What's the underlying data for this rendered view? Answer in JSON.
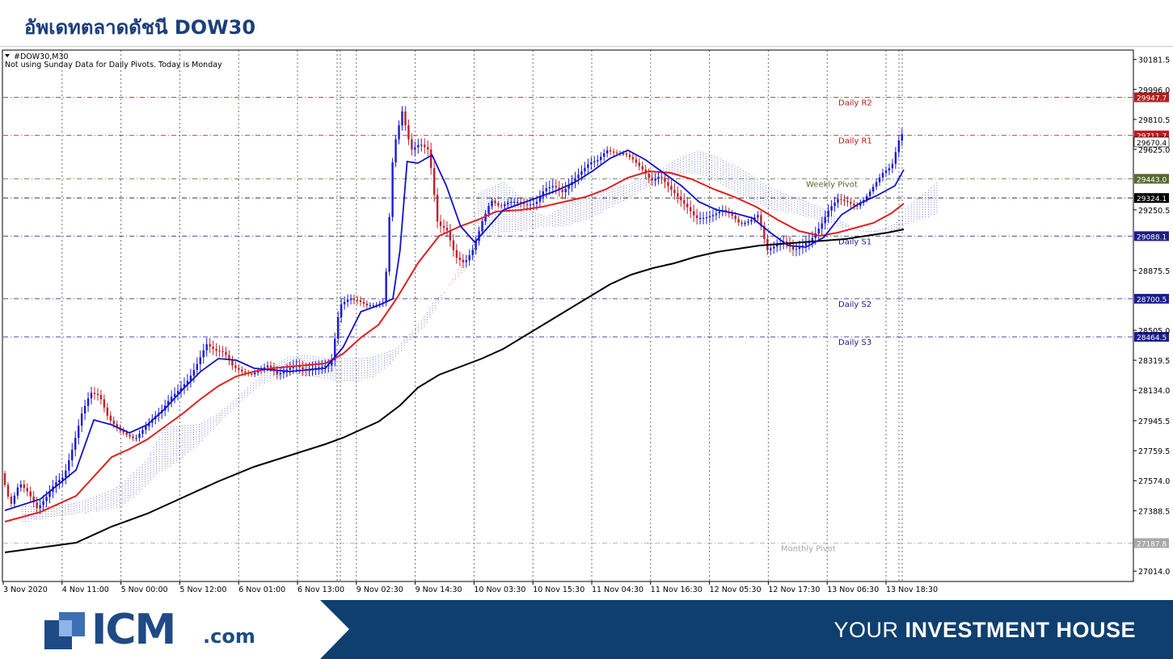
{
  "slide": {
    "title": "อัพเดทตลาดดัชนี DOW30",
    "footer": {
      "logo_text": "ICM",
      "logo_suffix": ".com",
      "tagline_light": "YOUR ",
      "tagline_bold": "INVESTMENT HOUSE"
    }
  },
  "colors": {
    "title": "#1c3f7a",
    "footer_band": "#0f3f6e",
    "candle_up": "#1a1ad6",
    "candle_down": "#c0202a",
    "ma_fast": "#1111cc",
    "ma_mid": "#e02020",
    "ma_slow": "#000000",
    "cloud_up": "#3a3ad0",
    "cloud_down": "#e03030"
  },
  "chart_data": {
    "type": "line",
    "symbol_label": "#DOW30,M30",
    "note": "Not using Sunday Data for Daily Pivots.  Today is Monday",
    "y_ticks": [
      30181.5,
      29996.0,
      29810.5,
      29625.0,
      29250.5,
      28875.5,
      28505.0,
      28319.5,
      28134.0,
      27945.5,
      27759.5,
      27574.0,
      27388.5,
      27014.0
    ],
    "ylim": [
      26950,
      30240
    ],
    "x_ticks": [
      "3 Nov 2020",
      "4 Nov 11:00",
      "5 Nov 00:00",
      "5 Nov 12:00",
      "6 Nov 01:00",
      "6 Nov 13:00",
      "9 Nov 02:30",
      "9 Nov 14:30",
      "10 Nov 03:30",
      "10 Nov 15:30",
      "11 Nov 04:30",
      "11 Nov 16:30",
      "12 Nov 05:30",
      "12 Nov 17:30",
      "13 Nov 06:30",
      "13 Nov 18:30"
    ],
    "levels": [
      {
        "label": "Daily R2",
        "value": 29947.7,
        "value_text": "29947.7",
        "color": "#b02020"
      },
      {
        "label": "Daily R1",
        "value": 29711.7,
        "value_text": "29711.7",
        "color": "#c01818"
      },
      {
        "label": "Weekly Pivot",
        "value": 29443.0,
        "value_text": "29443.0",
        "color": "#556b2f"
      },
      {
        "label": "",
        "value": 29324.1,
        "value_text": "29324.1",
        "color": "#000000"
      },
      {
        "label": "Daily S1",
        "value": 29088.1,
        "value_text": "29088.1",
        "color": "#1c1c8a"
      },
      {
        "label": "Daily S2",
        "value": 28700.5,
        "value_text": "28700.5",
        "color": "#1c1c8a"
      },
      {
        "label": "Daily S3",
        "value": 28464.5,
        "value_text": "28464.5",
        "color": "#1c1c8a"
      },
      {
        "label": "Monthly Pivot",
        "value": 27187.8,
        "value_text": "27187.8",
        "color": "#a8a8a8"
      }
    ],
    "current_price": {
      "value": 29670.4,
      "value_text": "29670.4"
    },
    "series": [
      {
        "role": "price",
        "points": [
          [
            0,
            27620
          ],
          [
            5,
            27420
          ],
          [
            10,
            27560
          ],
          [
            15,
            27500
          ],
          [
            20,
            27400
          ],
          [
            25,
            27470
          ],
          [
            30,
            27560
          ],
          [
            35,
            27600
          ],
          [
            40,
            27780
          ],
          [
            45,
            27990
          ],
          [
            50,
            28120
          ],
          [
            55,
            28100
          ],
          [
            60,
            27960
          ],
          [
            65,
            27900
          ],
          [
            70,
            27860
          ],
          [
            75,
            27830
          ],
          [
            80,
            27900
          ],
          [
            85,
            27960
          ],
          [
            90,
            28010
          ],
          [
            95,
            28090
          ],
          [
            100,
            28140
          ],
          [
            105,
            28200
          ],
          [
            110,
            28300
          ],
          [
            115,
            28420
          ],
          [
            120,
            28380
          ],
          [
            125,
            28370
          ],
          [
            130,
            28280
          ],
          [
            135,
            28250
          ],
          [
            140,
            28230
          ],
          [
            145,
            28260
          ],
          [
            150,
            28290
          ],
          [
            155,
            28230
          ],
          [
            160,
            28260
          ],
          [
            165,
            28290
          ],
          [
            170,
            28260
          ],
          [
            175,
            28270
          ],
          [
            180,
            28280
          ],
          [
            185,
            28290
          ],
          [
            190,
            28660
          ],
          [
            195,
            28700
          ],
          [
            200,
            28690
          ],
          [
            205,
            28660
          ],
          [
            210,
            28660
          ],
          [
            215,
            28680
          ],
          [
            220,
            29620
          ],
          [
            225,
            29860
          ],
          [
            230,
            29620
          ],
          [
            235,
            29660
          ],
          [
            240,
            29620
          ],
          [
            245,
            29160
          ],
          [
            250,
            29130
          ],
          [
            255,
            28960
          ],
          [
            260,
            28920
          ],
          [
            265,
            29010
          ],
          [
            270,
            29180
          ],
          [
            275,
            29310
          ],
          [
            280,
            29270
          ],
          [
            285,
            29300
          ],
          [
            290,
            29300
          ],
          [
            295,
            29280
          ],
          [
            300,
            29290
          ],
          [
            305,
            29380
          ],
          [
            310,
            29400
          ],
          [
            315,
            29360
          ],
          [
            320,
            29420
          ],
          [
            325,
            29480
          ],
          [
            330,
            29540
          ],
          [
            335,
            29560
          ],
          [
            340,
            29620
          ],
          [
            345,
            29600
          ],
          [
            350,
            29600
          ],
          [
            355,
            29560
          ],
          [
            360,
            29500
          ],
          [
            365,
            29430
          ],
          [
            370,
            29460
          ],
          [
            375,
            29390
          ],
          [
            380,
            29330
          ],
          [
            385,
            29270
          ],
          [
            390,
            29200
          ],
          [
            395,
            29200
          ],
          [
            400,
            29220
          ],
          [
            405,
            29250
          ],
          [
            410,
            29220
          ],
          [
            415,
            29160
          ],
          [
            420,
            29180
          ],
          [
            425,
            29220
          ],
          [
            430,
            29000
          ],
          [
            435,
            29030
          ],
          [
            440,
            29060
          ],
          [
            445,
            29000
          ],
          [
            450,
            29030
          ],
          [
            455,
            29070
          ],
          [
            460,
            29150
          ],
          [
            465,
            29260
          ],
          [
            470,
            29320
          ],
          [
            475,
            29300
          ],
          [
            480,
            29270
          ],
          [
            485,
            29320
          ],
          [
            490,
            29400
          ],
          [
            495,
            29480
          ],
          [
            500,
            29520
          ],
          [
            505,
            29720
          ]
        ]
      },
      {
        "role": "ma_fast",
        "points": [
          [
            0,
            27390
          ],
          [
            20,
            27460
          ],
          [
            40,
            27640
          ],
          [
            50,
            27950
          ],
          [
            60,
            27920
          ],
          [
            70,
            27870
          ],
          [
            80,
            27920
          ],
          [
            90,
            28020
          ],
          [
            100,
            28140
          ],
          [
            110,
            28250
          ],
          [
            120,
            28330
          ],
          [
            130,
            28320
          ],
          [
            140,
            28270
          ],
          [
            150,
            28260
          ],
          [
            160,
            28250
          ],
          [
            170,
            28260
          ],
          [
            180,
            28270
          ],
          [
            190,
            28400
          ],
          [
            200,
            28620
          ],
          [
            210,
            28660
          ],
          [
            218,
            28700
          ],
          [
            222,
            29000
          ],
          [
            226,
            29550
          ],
          [
            232,
            29540
          ],
          [
            240,
            29590
          ],
          [
            248,
            29400
          ],
          [
            256,
            29150
          ],
          [
            264,
            29050
          ],
          [
            272,
            29150
          ],
          [
            280,
            29250
          ],
          [
            290,
            29290
          ],
          [
            300,
            29330
          ],
          [
            310,
            29370
          ],
          [
            320,
            29420
          ],
          [
            330,
            29490
          ],
          [
            340,
            29570
          ],
          [
            350,
            29620
          ],
          [
            360,
            29560
          ],
          [
            370,
            29480
          ],
          [
            380,
            29400
          ],
          [
            390,
            29300
          ],
          [
            400,
            29250
          ],
          [
            410,
            29230
          ],
          [
            420,
            29200
          ],
          [
            430,
            29110
          ],
          [
            440,
            29030
          ],
          [
            450,
            29020
          ],
          [
            460,
            29080
          ],
          [
            470,
            29220
          ],
          [
            480,
            29290
          ],
          [
            490,
            29340
          ],
          [
            500,
            29400
          ],
          [
            505,
            29500
          ]
        ]
      },
      {
        "role": "ma_mid",
        "points": [
          [
            0,
            27320
          ],
          [
            20,
            27380
          ],
          [
            40,
            27480
          ],
          [
            50,
            27600
          ],
          [
            60,
            27720
          ],
          [
            70,
            27770
          ],
          [
            80,
            27830
          ],
          [
            90,
            27910
          ],
          [
            100,
            27990
          ],
          [
            110,
            28080
          ],
          [
            120,
            28160
          ],
          [
            130,
            28220
          ],
          [
            140,
            28250
          ],
          [
            150,
            28270
          ],
          [
            160,
            28280
          ],
          [
            170,
            28290
          ],
          [
            180,
            28300
          ],
          [
            190,
            28360
          ],
          [
            200,
            28460
          ],
          [
            210,
            28540
          ],
          [
            220,
            28700
          ],
          [
            232,
            28920
          ],
          [
            244,
            29090
          ],
          [
            256,
            29150
          ],
          [
            266,
            29190
          ],
          [
            276,
            29240
          ],
          [
            290,
            29250
          ],
          [
            302,
            29270
          ],
          [
            314,
            29300
          ],
          [
            326,
            29330
          ],
          [
            338,
            29380
          ],
          [
            350,
            29450
          ],
          [
            362,
            29490
          ],
          [
            374,
            29480
          ],
          [
            386,
            29440
          ],
          [
            398,
            29380
          ],
          [
            410,
            29330
          ],
          [
            422,
            29270
          ],
          [
            434,
            29190
          ],
          [
            446,
            29120
          ],
          [
            458,
            29090
          ],
          [
            468,
            29110
          ],
          [
            478,
            29140
          ],
          [
            488,
            29170
          ],
          [
            498,
            29230
          ],
          [
            505,
            29290
          ]
        ]
      },
      {
        "role": "ma_slow",
        "points": [
          [
            0,
            27130
          ],
          [
            40,
            27190
          ],
          [
            60,
            27290
          ],
          [
            80,
            27370
          ],
          [
            100,
            27470
          ],
          [
            120,
            27570
          ],
          [
            140,
            27660
          ],
          [
            160,
            27730
          ],
          [
            180,
            27800
          ],
          [
            190,
            27840
          ],
          [
            200,
            27890
          ],
          [
            210,
            27940
          ],
          [
            222,
            28040
          ],
          [
            232,
            28150
          ],
          [
            244,
            28230
          ],
          [
            256,
            28280
          ],
          [
            268,
            28330
          ],
          [
            280,
            28390
          ],
          [
            292,
            28470
          ],
          [
            304,
            28550
          ],
          [
            316,
            28630
          ],
          [
            328,
            28710
          ],
          [
            340,
            28790
          ],
          [
            352,
            28850
          ],
          [
            364,
            28890
          ],
          [
            376,
            28920
          ],
          [
            388,
            28960
          ],
          [
            400,
            28990
          ],
          [
            412,
            29010
          ],
          [
            424,
            29030
          ],
          [
            436,
            29040
          ],
          [
            448,
            29050
          ],
          [
            460,
            29060
          ],
          [
            472,
            29070
          ],
          [
            484,
            29090
          ],
          [
            496,
            29110
          ],
          [
            505,
            29130
          ]
        ]
      }
    ]
  }
}
